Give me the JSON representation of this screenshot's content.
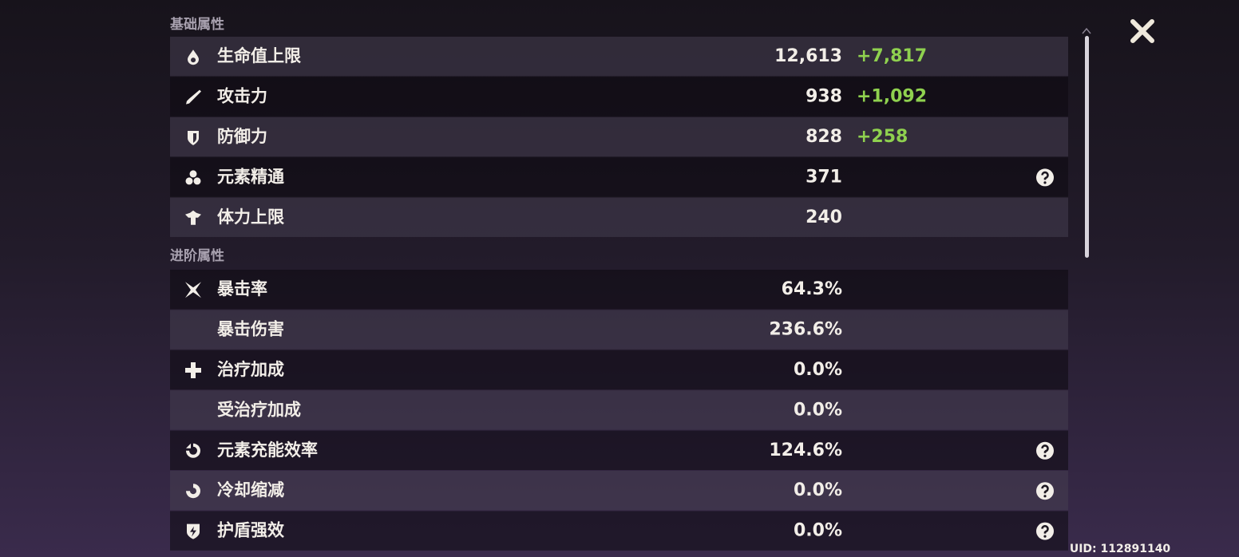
{
  "sections": [
    {
      "title": "基础属性",
      "rows": [
        {
          "label": "生命值上限",
          "value": "12,613",
          "bonus": "+7,817"
        },
        {
          "label": "攻击力",
          "value": "938",
          "bonus": "+1,092"
        },
        {
          "label": "防御力",
          "value": "828",
          "bonus": "+258"
        },
        {
          "label": "元素精通",
          "value": "371"
        },
        {
          "label": "体力上限",
          "value": "240"
        }
      ]
    },
    {
      "title": "进阶属性",
      "rows": [
        {
          "label": "暴击率",
          "value": "64.3%"
        },
        {
          "label": "暴击伤害",
          "value": "236.6%"
        },
        {
          "label": "治疗加成",
          "value": "0.0%"
        },
        {
          "label": "受治疗加成",
          "value": "0.0%"
        },
        {
          "label": "元素充能效率",
          "value": "124.6%"
        },
        {
          "label": "冷却缩减",
          "value": "0.0%"
        },
        {
          "label": "护盾强效",
          "value": "0.0%"
        }
      ]
    }
  ],
  "uid": "UID: 112891140"
}
